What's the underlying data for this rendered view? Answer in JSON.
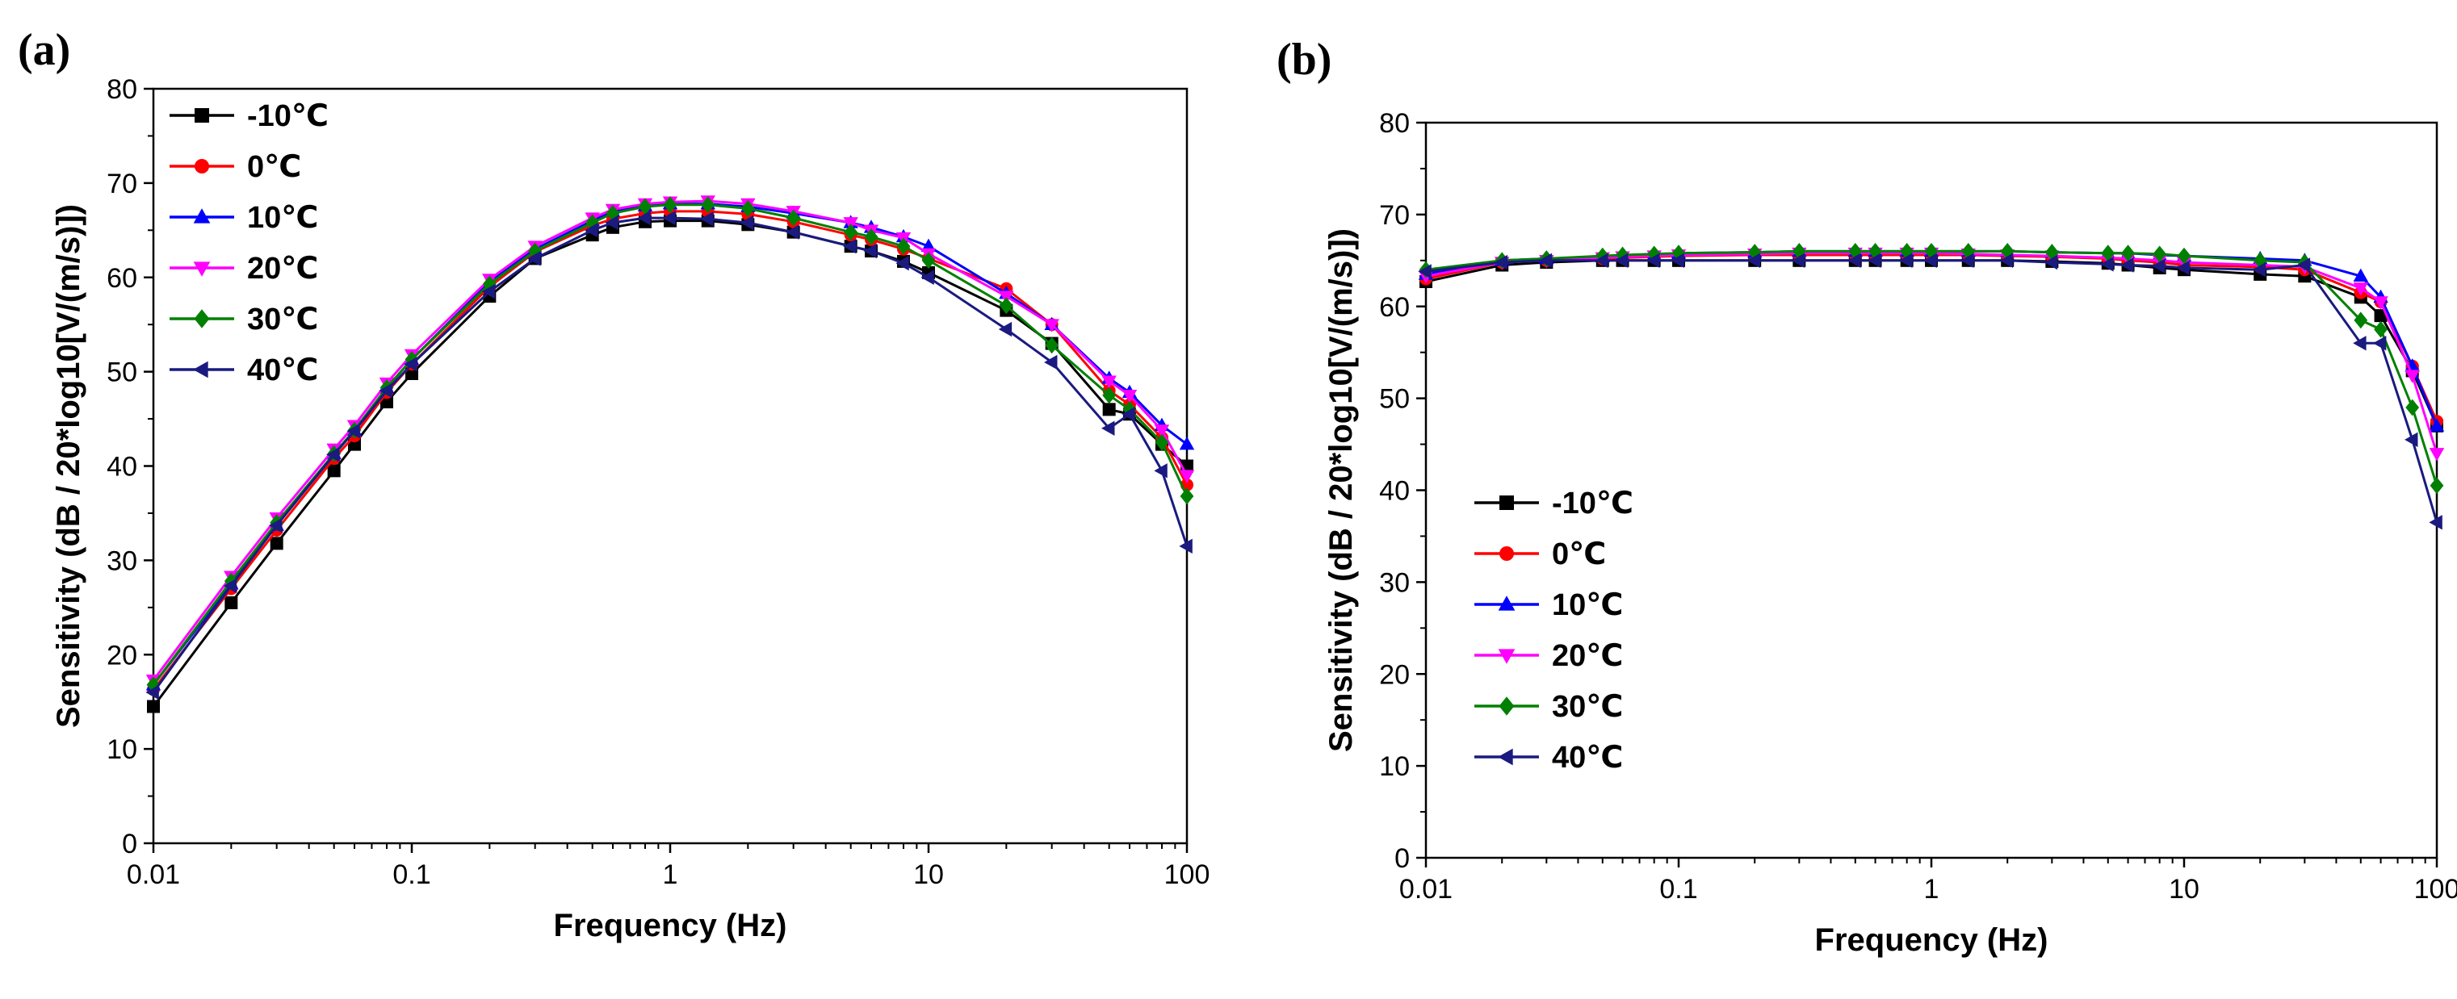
{
  "chart_data": [
    {
      "type": "line",
      "panel_label": "(a)",
      "xscale": "log",
      "xlabel": "Frequency (Hz)",
      "ylabel": "Sensitivity (dB / 20*log10[V/(m/s)])",
      "xlim": [
        0.01,
        100
      ],
      "ylim": [
        0,
        80
      ],
      "xticks": [
        0.01,
        0.1,
        1,
        10,
        100
      ],
      "xtick_labels": [
        "0.01",
        "0.1",
        "1",
        "10",
        "100"
      ],
      "yticks": [
        0,
        10,
        20,
        30,
        40,
        50,
        60,
        70,
        80
      ],
      "ytick_labels": [
        "0",
        "10",
        "20",
        "30",
        "40",
        "50",
        "60",
        "70",
        "80"
      ],
      "legend_position": "top-left",
      "x": [
        0.01,
        0.02,
        0.03,
        0.05,
        0.06,
        0.08,
        0.1,
        0.2,
        0.3,
        0.5,
        0.6,
        0.8,
        1,
        1.4,
        2,
        3,
        5,
        6,
        8,
        10,
        20,
        30,
        50,
        60,
        80,
        100
      ],
      "series": [
        {
          "name": "-10℃",
          "color": "#000000",
          "marker": "square",
          "values": [
            14.5,
            25.5,
            31.8,
            39.5,
            42.3,
            46.8,
            49.8,
            58.0,
            62.0,
            64.5,
            65.3,
            65.9,
            66.0,
            66.0,
            65.6,
            64.8,
            63.3,
            62.8,
            61.7,
            60.5,
            56.5,
            53.0,
            46.0,
            45.5,
            42.3,
            40.0
          ]
        },
        {
          "name": "0℃",
          "color": "#ff0000",
          "marker": "circle",
          "values": [
            16.3,
            27.0,
            33.2,
            40.8,
            43.2,
            47.8,
            50.8,
            59.0,
            62.7,
            65.5,
            66.2,
            66.8,
            67.0,
            67.0,
            66.7,
            65.9,
            64.5,
            64.0,
            63.0,
            62.0,
            58.8,
            55.0,
            48.0,
            46.5,
            43.0,
            38.0
          ]
        },
        {
          "name": "10℃",
          "color": "#0000ff",
          "marker": "triangle-up",
          "values": [
            16.8,
            27.5,
            33.7,
            41.3,
            43.8,
            48.3,
            51.3,
            59.5,
            63.0,
            66.0,
            67.0,
            67.6,
            67.8,
            67.8,
            67.5,
            66.8,
            65.8,
            65.3,
            64.3,
            63.3,
            58.3,
            55.0,
            49.3,
            47.8,
            44.3,
            42.3
          ]
        },
        {
          "name": "20℃",
          "color": "#ff00ff",
          "marker": "triangle-down",
          "values": [
            17.3,
            28.3,
            34.5,
            41.8,
            44.3,
            48.8,
            51.8,
            59.8,
            63.3,
            66.3,
            67.2,
            67.8,
            68.0,
            68.1,
            67.8,
            67.0,
            65.8,
            65.0,
            64.2,
            62.5,
            58.0,
            55.0,
            49.0,
            47.5,
            43.8,
            39.0
          ]
        },
        {
          "name": "30℃",
          "color": "#008000",
          "marker": "diamond",
          "values": [
            16.8,
            27.8,
            34.0,
            41.3,
            43.8,
            48.3,
            51.3,
            59.3,
            62.8,
            65.8,
            66.8,
            67.5,
            67.7,
            67.7,
            67.3,
            66.3,
            64.8,
            64.3,
            63.3,
            61.8,
            57.0,
            52.8,
            47.5,
            46.0,
            42.5,
            36.8
          ]
        },
        {
          "name": "40℃",
          "color": "#1a1a80",
          "marker": "triangle-left",
          "values": [
            16.0,
            27.3,
            33.7,
            41.2,
            43.7,
            48.0,
            50.8,
            58.5,
            62.0,
            65.0,
            65.8,
            66.3,
            66.3,
            66.2,
            65.8,
            64.8,
            63.3,
            62.8,
            61.5,
            60.0,
            54.5,
            51.0,
            44.0,
            45.5,
            39.5,
            31.5
          ]
        }
      ]
    },
    {
      "type": "line",
      "panel_label": "(b)",
      "xscale": "log",
      "xlabel": "Frequency (Hz)",
      "ylabel": "Sensitivity (dB / 20*log10[V/(m/s)])",
      "xlim": [
        0.01,
        100
      ],
      "ylim": [
        0,
        80
      ],
      "xticks": [
        0.01,
        0.1,
        1,
        10,
        100
      ],
      "xtick_labels": [
        "0.01",
        "0.1",
        "1",
        "10",
        "100"
      ],
      "yticks": [
        0,
        10,
        20,
        30,
        40,
        50,
        60,
        70,
        80
      ],
      "ytick_labels": [
        "0",
        "10",
        "20",
        "30",
        "40",
        "50",
        "60",
        "70",
        "80"
      ],
      "legend_position": "bottom-left",
      "x": [
        0.01,
        0.02,
        0.03,
        0.05,
        0.06,
        0.08,
        0.1,
        0.2,
        0.3,
        0.5,
        0.6,
        0.8,
        1,
        1.4,
        2,
        3,
        5,
        6,
        8,
        10,
        20,
        30,
        50,
        60,
        80,
        100
      ],
      "series": [
        {
          "name": "-10℃",
          "color": "#000000",
          "marker": "square",
          "values": [
            62.7,
            64.5,
            64.8,
            65.0,
            65.0,
            65.0,
            65.0,
            65.0,
            65.0,
            65.0,
            65.0,
            65.0,
            65.0,
            65.0,
            65.0,
            64.9,
            64.7,
            64.5,
            64.2,
            64.0,
            63.5,
            63.3,
            61.0,
            59.0,
            53.0,
            47.0
          ]
        },
        {
          "name": "0℃",
          "color": "#ff0000",
          "marker": "circle",
          "values": [
            63.0,
            64.8,
            65.0,
            65.2,
            65.3,
            65.4,
            65.5,
            65.6,
            65.6,
            65.6,
            65.6,
            65.6,
            65.6,
            65.6,
            65.5,
            65.4,
            65.2,
            65.0,
            64.8,
            64.5,
            64.3,
            64.0,
            61.5,
            60.5,
            53.5,
            47.5
          ]
        },
        {
          "name": "10℃",
          "color": "#0000ff",
          "marker": "triangle-up",
          "values": [
            63.5,
            65.0,
            65.2,
            65.4,
            65.5,
            65.6,
            65.8,
            65.9,
            66.0,
            66.0,
            66.0,
            66.0,
            66.0,
            66.0,
            66.0,
            65.9,
            65.8,
            65.8,
            65.6,
            65.5,
            65.2,
            65.0,
            63.3,
            61.0,
            53.5,
            47.0
          ]
        },
        {
          "name": "20℃",
          "color": "#ff00ff",
          "marker": "triangle-down",
          "values": [
            63.3,
            64.8,
            65.0,
            65.3,
            65.4,
            65.5,
            65.6,
            65.7,
            65.8,
            65.8,
            65.8,
            65.8,
            65.8,
            65.7,
            65.6,
            65.5,
            65.3,
            65.2,
            65.0,
            64.8,
            64.5,
            64.3,
            62.0,
            60.5,
            52.5,
            44.0
          ]
        },
        {
          "name": "30℃",
          "color": "#008000",
          "marker": "diamond",
          "values": [
            64.0,
            65.0,
            65.2,
            65.5,
            65.6,
            65.7,
            65.8,
            65.9,
            66.0,
            66.0,
            66.0,
            66.0,
            66.0,
            66.0,
            66.0,
            65.9,
            65.8,
            65.8,
            65.7,
            65.5,
            65.0,
            64.8,
            58.5,
            57.5,
            49.0,
            40.5
          ]
        },
        {
          "name": "40℃",
          "color": "#1a1a80",
          "marker": "triangle-left",
          "values": [
            63.8,
            64.8,
            65.0,
            65.0,
            65.0,
            65.0,
            65.0,
            65.0,
            65.0,
            65.0,
            65.0,
            65.0,
            65.0,
            65.0,
            65.0,
            64.8,
            64.6,
            64.5,
            64.4,
            64.2,
            64.0,
            64.5,
            56.0,
            56.0,
            45.5,
            36.5
          ]
        }
      ]
    }
  ]
}
